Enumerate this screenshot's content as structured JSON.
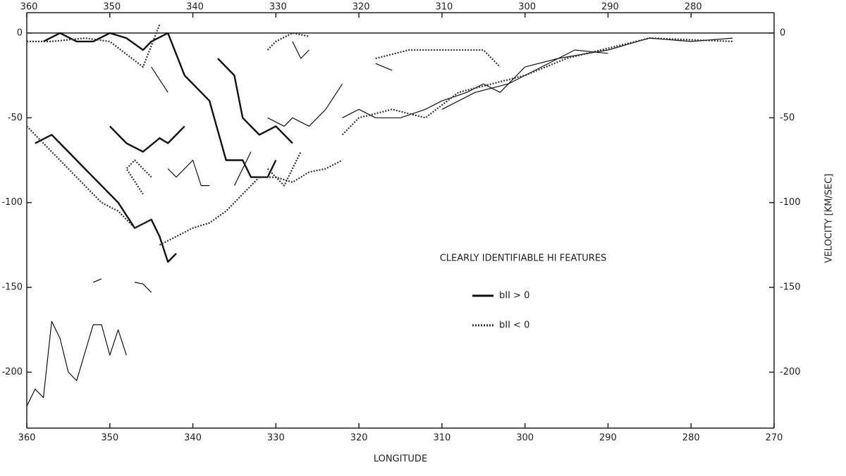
{
  "chart_data": {
    "type": "line",
    "legend_title": "CLEARLY IDENTIFIABLE HI FEATURES",
    "xlabel": "LONGITUDE",
    "ylabel": "VELOCITY [KM/SEC]",
    "xlim": [
      360,
      270
    ],
    "ylim": [
      -233,
      12
    ],
    "xticks": [
      360,
      350,
      340,
      330,
      320,
      310,
      300,
      290,
      280,
      270
    ],
    "x2ticks": [
      360,
      350,
      340,
      330,
      320,
      310,
      300,
      290,
      280
    ],
    "yticks": [
      0,
      -50,
      -100,
      -150,
      -200
    ],
    "series": [
      {
        "name": "bII > 0",
        "color": "#111111",
        "style": "solid",
        "lines": [
          {
            "x": [
              358,
              356,
              354,
              352,
              350,
              348,
              346,
              345,
              343
            ],
            "values": [
              -5,
              0,
              -5,
              -5,
              0,
              -3,
              -10,
              -5,
              0
            ]
          },
          {
            "x": [
              343,
              341,
              338,
              336,
              334,
              333,
              331,
              330
            ],
            "values": [
              0,
              -25,
              -40,
              -75,
              -75,
              -85,
              -85,
              -75
            ]
          },
          {
            "x": [
              337,
              335,
              334,
              332,
              330,
              328
            ],
            "values": [
              -15,
              -25,
              -50,
              -60,
              -55,
              -65
            ]
          },
          {
            "x": [
              359,
              357,
              355,
              353,
              351,
              349,
              347,
              345,
              344,
              343,
              342
            ],
            "values": [
              -65,
              -60,
              -70,
              -80,
              -90,
              -100,
              -115,
              -110,
              -120,
              -135,
              -130
            ]
          },
          {
            "x": [
              350,
              348,
              346,
              344,
              343,
              341
            ],
            "values": [
              -55,
              -65,
              -70,
              -62,
              -65,
              -55
            ]
          },
          {
            "x": [
              360,
              359,
              358,
              357,
              356,
              355,
              354,
              352,
              351,
              350,
              349,
              348
            ],
            "values": [
              -220,
              -210,
              -215,
              -170,
              -180,
              -200,
              -205,
              -172,
              -172,
              -190,
              -175,
              -190
            ]
          },
          {
            "x": [
              347,
              346,
              345
            ],
            "values": [
              -147,
              -148,
              -153
            ]
          },
          {
            "x": [
              352,
              351
            ],
            "values": [
              -147,
              -145
            ]
          },
          {
            "x": [
              322,
              320,
              318,
              315,
              312,
              310,
              307,
              305,
              303,
              300,
              296,
              290,
              285,
              280,
              275
            ],
            "values": [
              -50,
              -45,
              -50,
              -50,
              -45,
              -40,
              -35,
              -30,
              -35,
              -20,
              -15,
              -10,
              -3,
              -5,
              -3
            ]
          },
          {
            "x": [
              310,
              306,
              302,
              298,
              294,
              290
            ],
            "values": [
              -45,
              -35,
              -30,
              -20,
              -10,
              -12
            ]
          },
          {
            "x": [
              318,
              316
            ],
            "values": [
              -18,
              -22
            ]
          },
          {
            "x": [
              331,
              329,
              328,
              326,
              324,
              322
            ],
            "values": [
              -50,
              -55,
              -50,
              -55,
              -45,
              -30
            ]
          },
          {
            "x": [
              328,
              327,
              326
            ],
            "values": [
              -5,
              -15,
              -10
            ]
          },
          {
            "x": [
              345,
              343
            ],
            "values": [
              -20,
              -35
            ]
          },
          {
            "x": [
              343,
              342,
              340,
              339,
              338
            ],
            "values": [
              -80,
              -85,
              -75,
              -90,
              -90
            ]
          },
          {
            "x": [
              335,
              333
            ],
            "values": [
              -90,
              -70
            ]
          }
        ]
      },
      {
        "name": "bII < 0",
        "color": "#333333",
        "style": "dotted",
        "lines": [
          {
            "x": [
              360,
              359,
              357,
              355,
              353,
              351,
              349,
              347,
              345
            ],
            "values": [
              -55,
              -60,
              -70,
              -80,
              -90,
              -100,
              -105,
              -115,
              -110
            ]
          },
          {
            "x": [
              344,
              342,
              340,
              338,
              336,
              334,
              332,
              330,
              328,
              326,
              324,
              322
            ],
            "values": [
              -125,
              -120,
              -115,
              -112,
              -105,
              -95,
              -85,
              -85,
              -88,
              -82,
              -80,
              -75
            ]
          },
          {
            "x": [
              331,
              330,
              328,
              326
            ],
            "values": [
              -10,
              -5,
              0,
              -2
            ]
          },
          {
            "x": [
              318,
              314,
              310,
              305,
              303
            ],
            "values": [
              -15,
              -10,
              -10,
              -10,
              -20
            ]
          },
          {
            "x": [
              322,
              320,
              316,
              312,
              308,
              304,
              300,
              295,
              285,
              275
            ],
            "values": [
              -60,
              -50,
              -45,
              -50,
              -35,
              -30,
              -25,
              -15,
              -3,
              -5
            ]
          },
          {
            "x": [
              360,
              357,
              353,
              350,
              346,
              344
            ],
            "values": [
              -5,
              -5,
              -3,
              -5,
              -20,
              5
            ]
          },
          {
            "x": [
              345,
              347,
              348,
              346
            ],
            "values": [
              -85,
              -75,
              -80,
              -95
            ]
          },
          {
            "x": [
              331,
              329,
              327
            ],
            "values": [
              -80,
              -90,
              -70
            ]
          }
        ]
      }
    ]
  }
}
